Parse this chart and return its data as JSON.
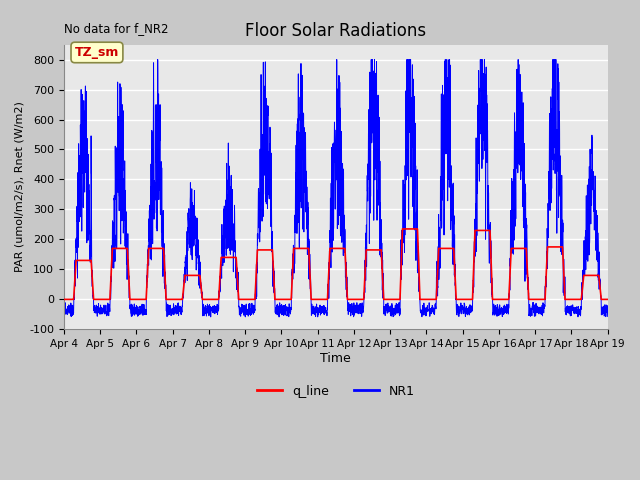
{
  "title": "Floor Solar Radiations",
  "xlabel": "Time",
  "ylabel": "PAR (umol/m2/s), Rnet (W/m2)",
  "top_left_text": "No data for f_NR2",
  "legend_label": "TZ_sm",
  "ylim": [
    -100,
    850
  ],
  "yticks": [
    -100,
    0,
    100,
    200,
    300,
    400,
    500,
    600,
    700,
    800
  ],
  "x_tick_labels": [
    "Apr 4",
    "Apr 5",
    "Apr 6",
    "Apr 7",
    "Apr 8",
    "Apr 9",
    "Apr 10",
    "Apr 11",
    "Apr 12",
    "Apr 13",
    "Apr 14",
    "Apr 15",
    "Apr 16",
    "Apr 17",
    "Apr 18",
    "Apr 19"
  ],
  "fig_bg_color": "#c8c8c8",
  "plot_bg_color": "#e8e8e8",
  "line1_color": "#ff0000",
  "line2_color": "#0000ff",
  "line1_label": "q_line",
  "line2_label": "NR1",
  "n_days": 15,
  "points_per_day": 288
}
